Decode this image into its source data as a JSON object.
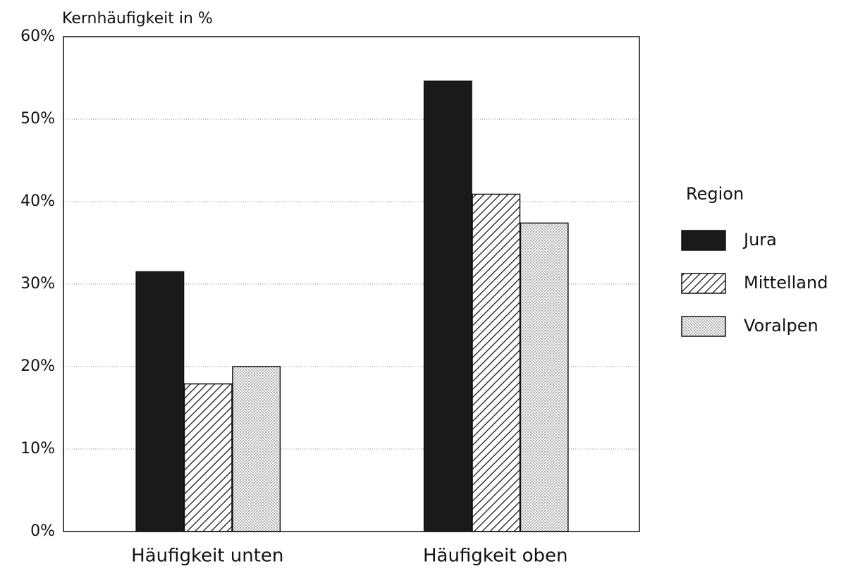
{
  "chart_data": {
    "type": "bar",
    "ylabel": "Kernhäufigkeit in %",
    "categories": [
      "Häufigkeit unten",
      "Häufigkeit oben"
    ],
    "series": [
      {
        "name": "Jura",
        "color": "#1a1a1a",
        "pattern": "solid",
        "values": [
          31.5,
          54.6
        ]
      },
      {
        "name": "Mittelland",
        "color": "#1a1a1a",
        "pattern": "hatch",
        "values": [
          17.9,
          40.9
        ]
      },
      {
        "name": "Voralpen",
        "color": "#1a1a1a",
        "pattern": "dots",
        "values": [
          20,
          37.4
        ]
      }
    ],
    "legend_title": "Region",
    "legend": "right",
    "ylim": [
      0,
      60
    ],
    "yticks": [
      {
        "value": 0,
        "label": "0%"
      },
      {
        "value": 10,
        "label": "10%"
      },
      {
        "value": 20,
        "label": "20%"
      },
      {
        "value": 30,
        "label": "30%"
      },
      {
        "value": 40,
        "label": "40%"
      },
      {
        "value": 50,
        "label": "50%"
      },
      {
        "value": 60,
        "label": "60%"
      }
    ],
    "grid": true
  }
}
